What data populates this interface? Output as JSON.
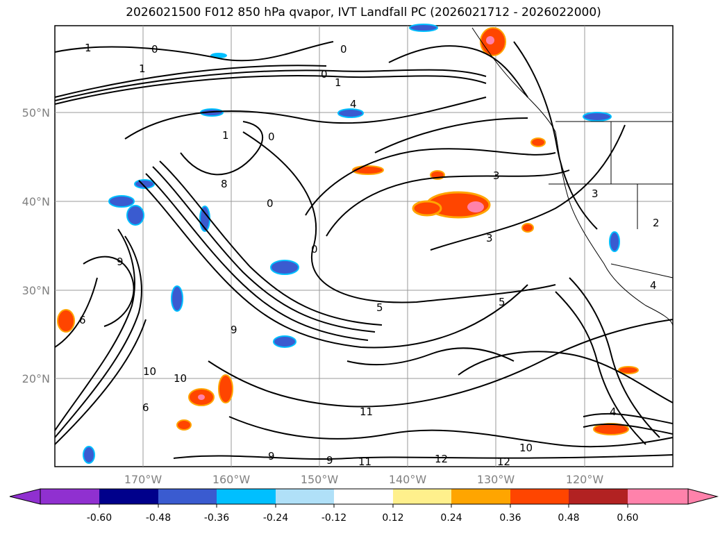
{
  "title": "2026021500 F012 850 hPa qvapor, IVT Landfall PC (2026021712 - 2026022000)",
  "map": {
    "lat_ticks": [
      "20°N",
      "30°N",
      "40°N",
      "50°N"
    ],
    "lon_ticks": [
      "170°W",
      "160°W",
      "150°W",
      "140°W",
      "130°W",
      "120°W"
    ],
    "gridlines": true,
    "contour_labels": [
      "1",
      "0",
      "0",
      "1",
      "0",
      "1",
      "4",
      "1",
      "0",
      "0",
      "8",
      "0",
      "3",
      "3",
      "3",
      "5",
      "5",
      "9",
      "10",
      "10",
      "9",
      "9",
      "11",
      "12",
      "12",
      "11",
      "10",
      "4",
      "4",
      "2",
      "6",
      "9",
      "6"
    ]
  },
  "colorbar": {
    "ticks": [
      "-0.60",
      "-0.48",
      "-0.36",
      "-0.24",
      "-0.12",
      "0.12",
      "0.24",
      "0.36",
      "0.48",
      "0.60"
    ],
    "colors": {
      "under": "#9b30d0",
      "bins": [
        "#9030d0",
        "#00008b",
        "#3a5bd0",
        "#00bfff",
        "#b0e0f8",
        "#ffffff",
        "#fff08c",
        "#ffa500",
        "#ff4500",
        "#b22222",
        "#ff82ab"
      ]
    }
  }
}
